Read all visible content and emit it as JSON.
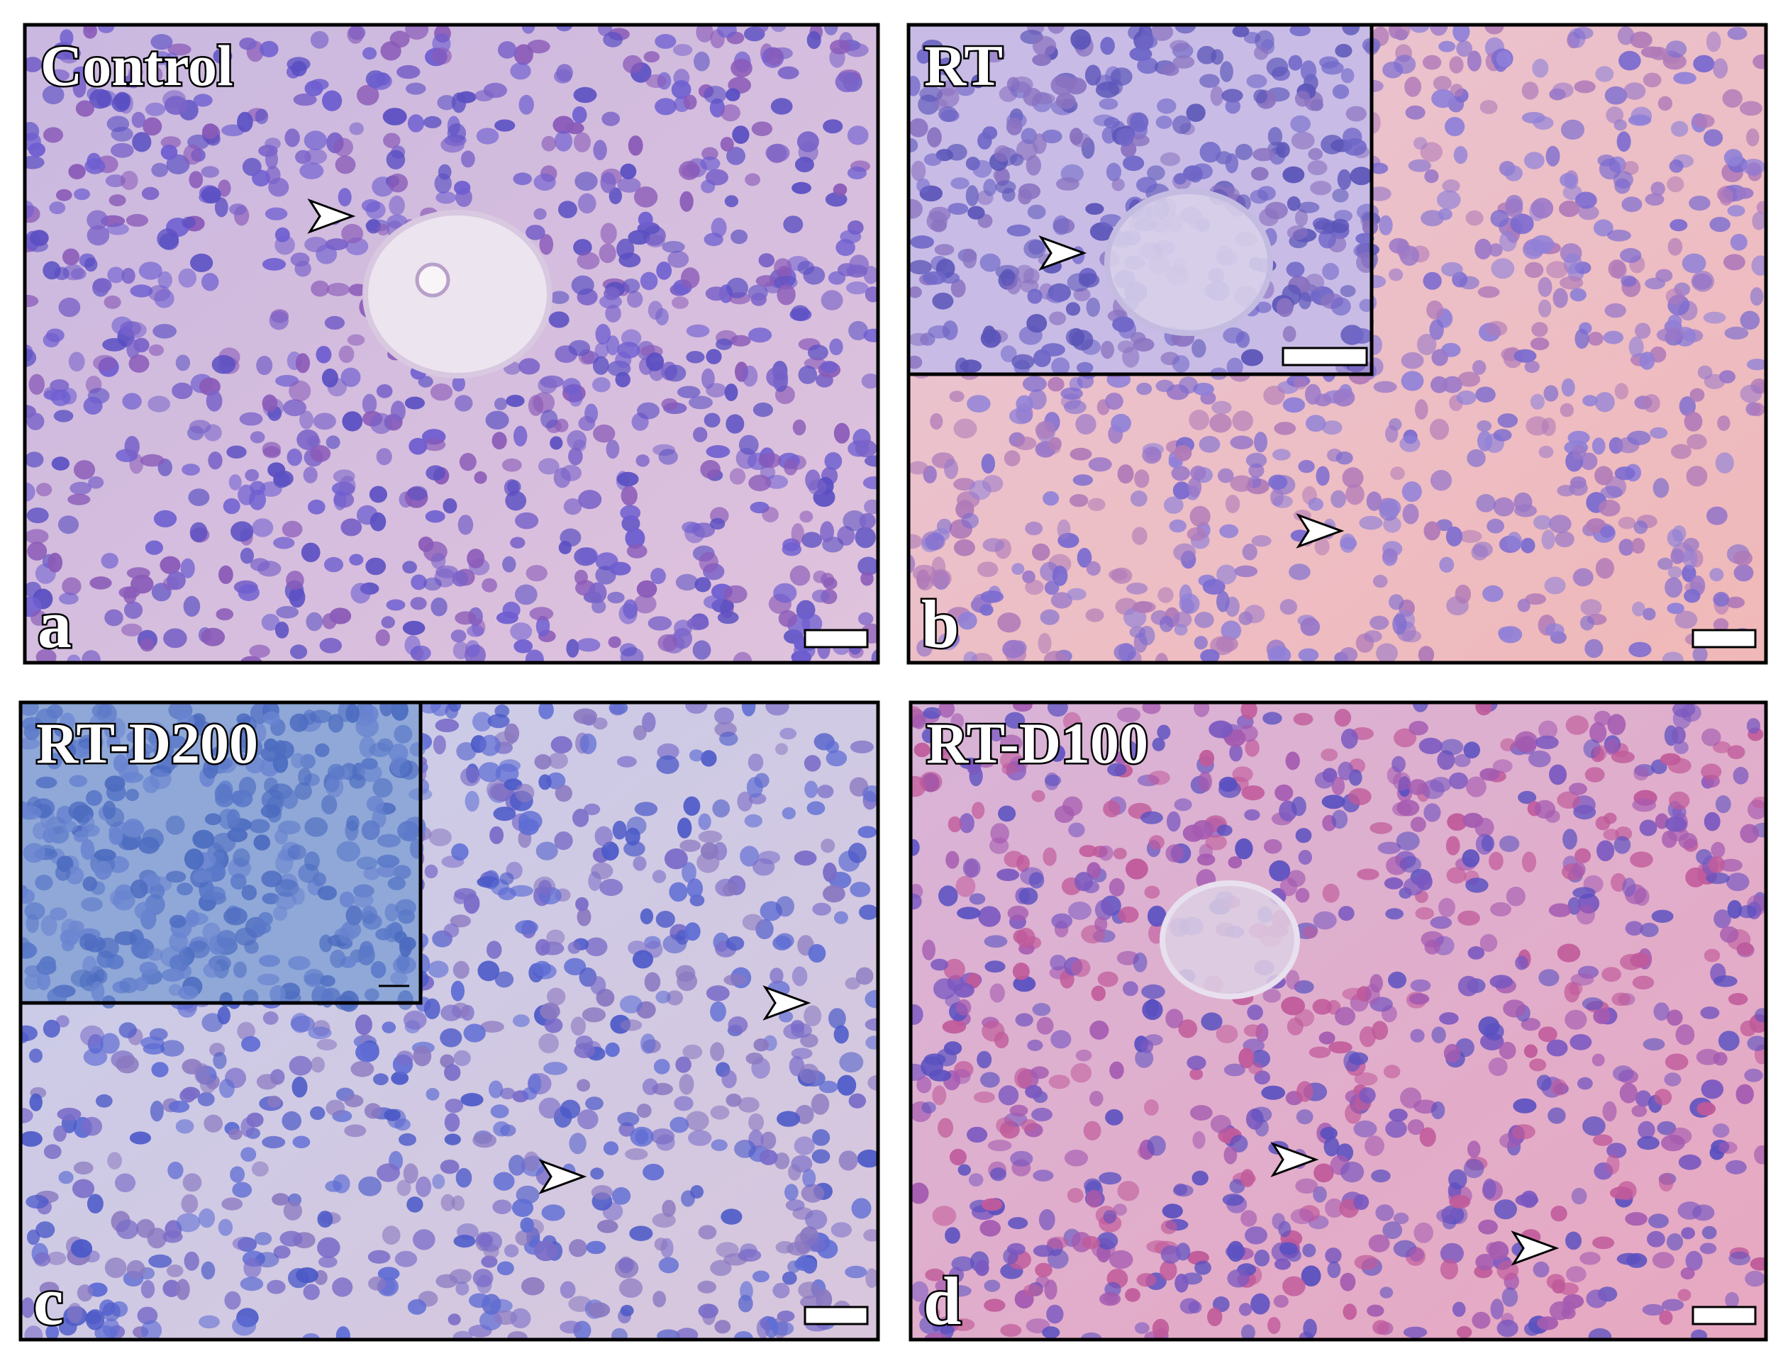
{
  "panels": [
    {
      "letter": "a",
      "label": "Control"
    },
    {
      "letter": "b",
      "label": "RT"
    },
    {
      "letter": "c",
      "label": "RT-D200"
    },
    {
      "letter": "d",
      "label": "RT-D100"
    }
  ]
}
